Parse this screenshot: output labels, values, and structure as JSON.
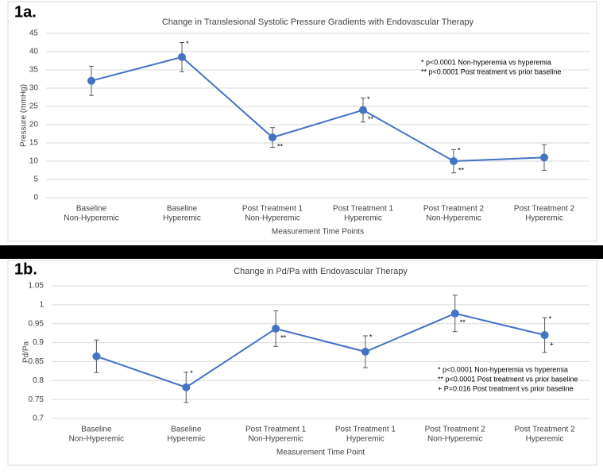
{
  "chart_data": [
    {
      "type": "line",
      "label": "1a.",
      "title": "Change in Translesional Systolic Pressure Gradients with Endovascular Therapy",
      "y_label": "Pressure (mmHg)",
      "x_label": "Measurement Time Points",
      "categories": [
        [
          "Baseline",
          "Non-Hyperemic"
        ],
        [
          "Baseline",
          "Hyperemic"
        ],
        [
          "Post Treatment 1",
          "Non-Hyperemic"
        ],
        [
          "Post Treatment 1",
          "Hyperemic"
        ],
        [
          "Post Treatment 2",
          "Non-Hyperemic"
        ],
        [
          "Post Treatment 2",
          "Hyperemic"
        ]
      ],
      "values": [
        32,
        38.5,
        16.5,
        24,
        10,
        11
      ],
      "errors": [
        4,
        4,
        2.7,
        3.3,
        3.2,
        3.5
      ],
      "annotations_above": [
        null,
        "*",
        null,
        "*",
        "*",
        null
      ],
      "annotations_below": [
        null,
        null,
        "**",
        "**",
        "**",
        null
      ],
      "notes": [
        "* p<0.0001 Non-hyperemia vs hyperemia",
        "** p<0.0001 Post treatment vs prior baseline"
      ],
      "color": "#4472c4",
      "ylim": [
        0,
        45
      ],
      "yticks": [
        0,
        5,
        10,
        15,
        20,
        25,
        30,
        35,
        40,
        45
      ],
      "grid": true
    },
    {
      "type": "line",
      "label": "1b.",
      "title": "Change in Pd/Pa with Endovascular Therapy",
      "y_label": "Pd/Pa",
      "x_label": "Measurement Time Point",
      "categories": [
        [
          "Baseline",
          "Non-Hyperemic"
        ],
        [
          "Baseline",
          "Hyperemic"
        ],
        [
          "Post Treatment 1",
          "Non-Hyperemic"
        ],
        [
          "Post Treatment 1",
          "Hyperemic"
        ],
        [
          "Post Treatment 2",
          "Non-Hyperemic"
        ],
        [
          "Post Treatment 2",
          "Hyperemic"
        ]
      ],
      "values": [
        0.864,
        0.782,
        0.937,
        0.876,
        0.977,
        0.92
      ],
      "errors": [
        0.043,
        0.04,
        0.047,
        0.042,
        0.048,
        0.046
      ],
      "annotations_above": [
        null,
        "*",
        null,
        "*",
        null,
        "*"
      ],
      "annotations_below": [
        null,
        null,
        "**",
        null,
        "**",
        "+"
      ],
      "notes": [
        "* p<0.0001 Non-hyperemia vs hyperemia",
        "** p<0.0001 Post treatment vs prior baseline",
        "+ P=0.016 Post treatment vs prior baseline"
      ],
      "color": "#4472c4",
      "ylim": [
        0.7,
        1.05
      ],
      "yticks": [
        0.7,
        0.75,
        0.8,
        0.85,
        0.9,
        0.95,
        1,
        1.05
      ],
      "grid": true
    }
  ]
}
